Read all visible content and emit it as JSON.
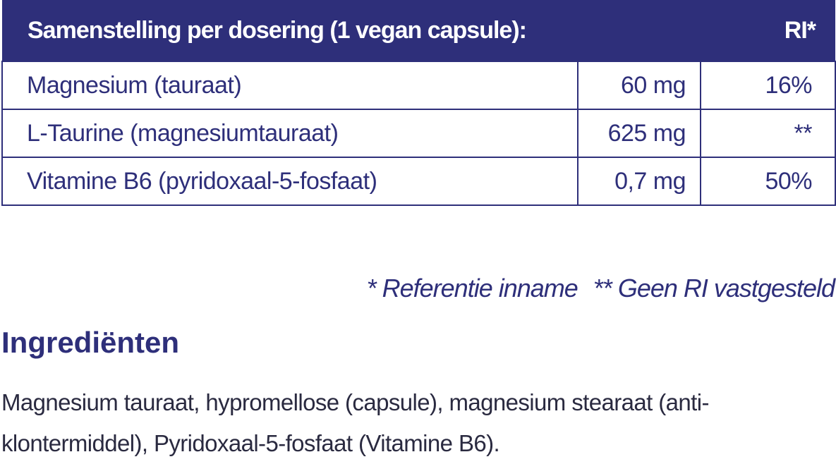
{
  "header": {
    "title": "Samenstelling per dosering (1 vegan capsule):",
    "ri": "RI*"
  },
  "table": {
    "rows": [
      [
        "Magnesium (tauraat)",
        "60 mg",
        "16%"
      ],
      [
        "L-Taurine (magnesiumtauraat)",
        "625 mg",
        "**"
      ],
      [
        "Vitamine B6 (pyridoxaal-5-fosfaat)",
        "0,7 mg",
        "50%"
      ]
    ]
  },
  "footnotes": [
    "* Referentie inname",
    "** Geen RI vastgesteld"
  ],
  "ingredients": {
    "title": "Ingrediënten",
    "lines": [
      "Magnesium tauraat, hypromellose (capsule), magnesium stearaat (anti-",
      "klontermiddel), Pyridoxaal-5-fosfaat (Vitamine B6)."
    ]
  }
}
